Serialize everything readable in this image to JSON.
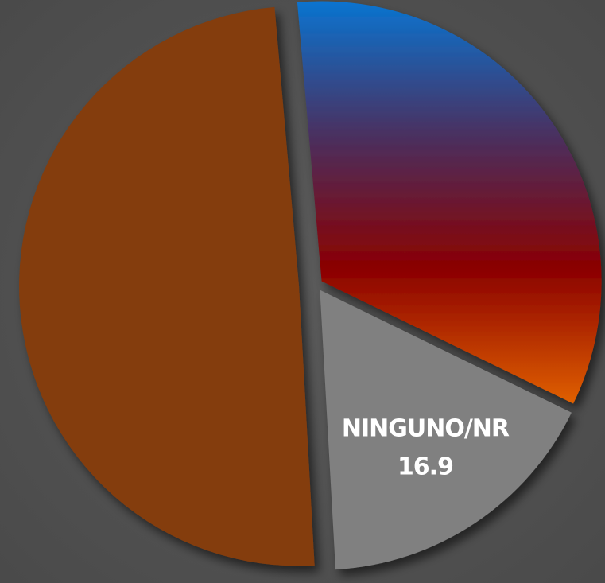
{
  "chart_data": {
    "type": "pie",
    "categories": [
      null,
      "NINGUNO/NR",
      null
    ],
    "values": [
      33.6,
      16.9,
      49.5
    ],
    "colors": [
      [
        "#0a74d0",
        "#4a3060",
        "#8b0000",
        "#e06000"
      ],
      "#808080",
      "#843c0c"
    ]
  }
}
